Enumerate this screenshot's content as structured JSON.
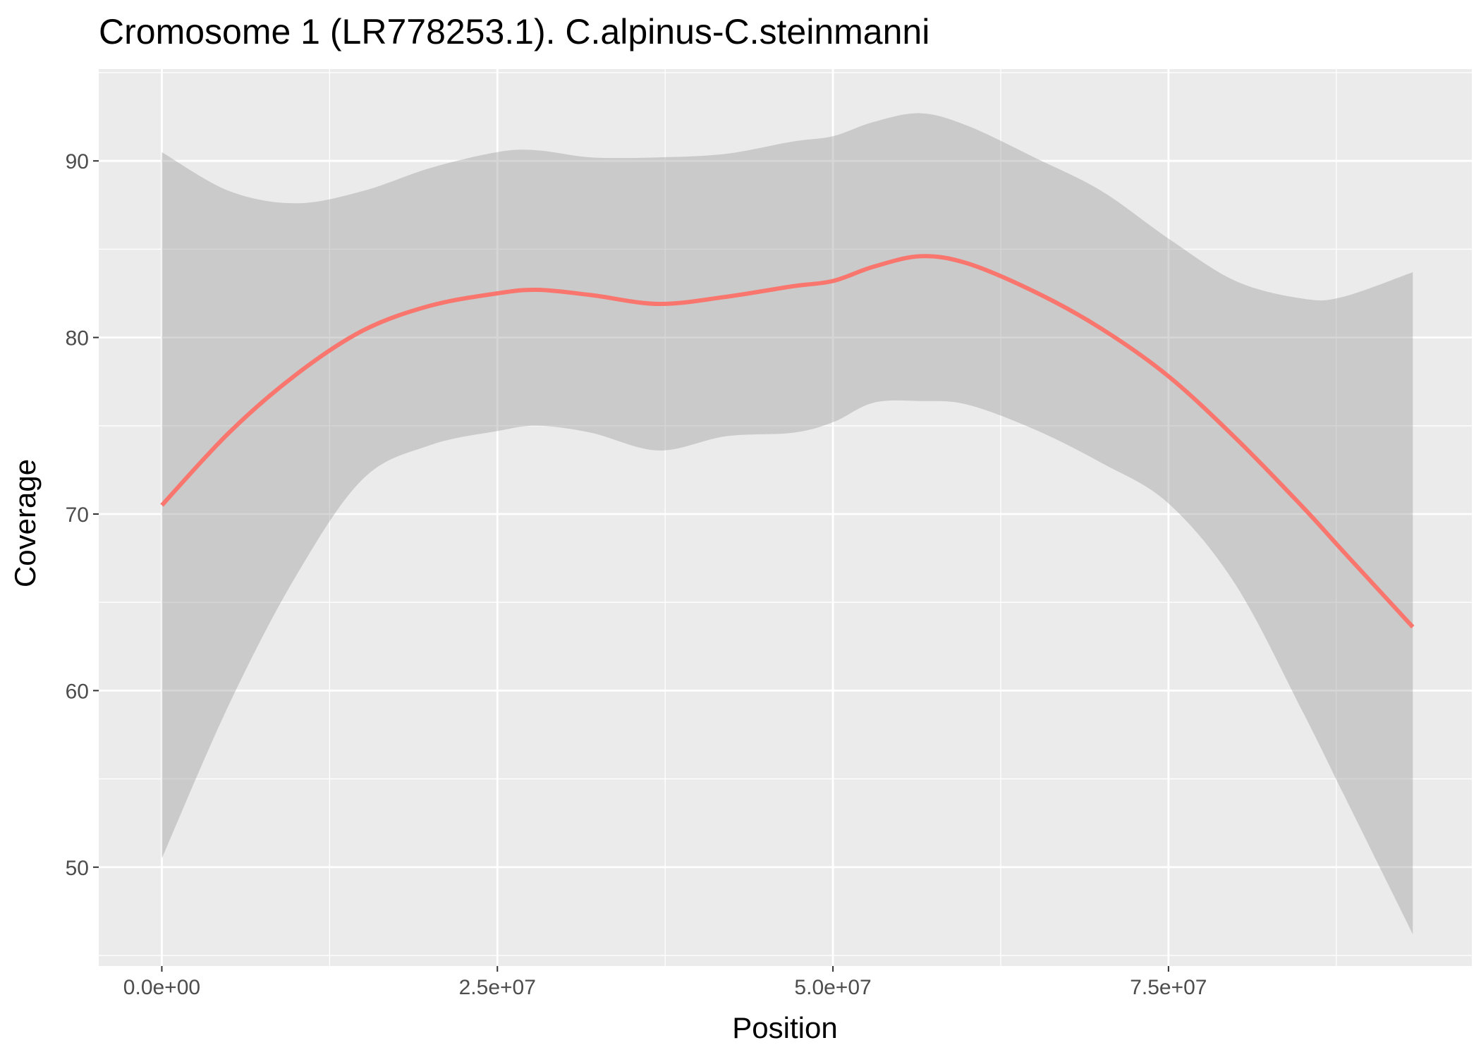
{
  "chart_data": {
    "type": "line",
    "title": "Cromosome 1 (LR778253.1). C.alpinus-C.steinmanni",
    "xlabel": "Position",
    "ylabel": "Coverage",
    "xlim": [
      -4700000,
      97600000
    ],
    "ylim": [
      44.4,
      95.2
    ],
    "x_ticks": [
      0,
      25000000,
      50000000,
      75000000
    ],
    "x_tick_labels": [
      "0.0e+00",
      "2.5e+07",
      "5.0e+07",
      "7.5e+07"
    ],
    "y_ticks": [
      50,
      60,
      70,
      80,
      90
    ],
    "y_tick_labels": [
      "50",
      "60",
      "70",
      "80",
      "90"
    ],
    "grid": true,
    "legend": "none",
    "colors": {
      "line": "#F8766D",
      "ribbon": "#999999",
      "panel": "#EBEBEB",
      "grid": "#FFFFFF"
    },
    "series": [
      {
        "x": [
          0,
          5000000,
          10000000,
          15000000,
          20000000,
          25000000,
          28000000,
          32000000,
          37000000,
          42000000,
          47000000,
          50000000,
          53000000,
          56500000,
          60000000,
          65000000,
          70000000,
          75000000,
          80000000,
          85000000,
          88000000,
          93200000
        ],
        "y": [
          70.5,
          74.6,
          77.9,
          80.4,
          81.8,
          82.5,
          82.7,
          82.4,
          81.9,
          82.3,
          82.9,
          83.2,
          84.0,
          84.6,
          84.2,
          82.6,
          80.5,
          77.8,
          74.3,
          70.4,
          67.9,
          63.6
        ],
        "ymin": [
          50.5,
          59.2,
          66.5,
          72.0,
          73.9,
          74.7,
          75.0,
          74.6,
          73.6,
          74.4,
          74.6,
          75.2,
          76.3,
          76.4,
          76.2,
          74.8,
          72.9,
          70.6,
          66.0,
          58.8,
          54.2,
          46.2
        ],
        "ymax": [
          90.5,
          88.3,
          87.6,
          88.3,
          89.6,
          90.5,
          90.6,
          90.2,
          90.2,
          90.4,
          91.1,
          91.4,
          92.2,
          92.7,
          92.0,
          90.2,
          88.3,
          85.6,
          83.2,
          82.2,
          82.3,
          83.7
        ]
      }
    ]
  }
}
